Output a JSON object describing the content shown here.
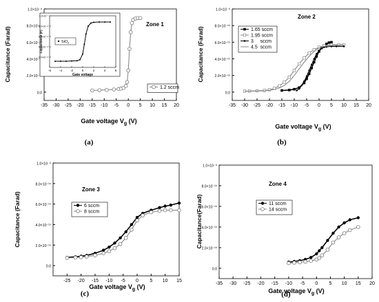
{
  "chart_data": [
    {
      "type": "line",
      "panel_label": "(a)",
      "zone_label": "Zone 1",
      "xlabel": "Gate voltage V",
      "xlabel_sub": "g",
      "xlabel_unit": " (V)",
      "ylabel": "Capacitance (Farad)",
      "xlim": [
        -35,
        20
      ],
      "ylim": [
        -1e-10,
        1e-09
      ],
      "x_ticks": [
        "-35",
        "-30",
        "-25",
        "-20",
        "-15",
        "-10",
        "-5",
        "0",
        "5",
        "10",
        "15",
        "20"
      ],
      "y_ticks": [
        "0.0",
        "2.0×10⁻¹⁰",
        "4.0×10⁻¹⁰",
        "6.0×10⁻¹⁰",
        "8.0×10⁻¹⁰",
        "1.0×10⁻⁹"
      ],
      "legend_position": "right",
      "series": [
        {
          "name": "1.2 sccm",
          "marker": "open-circle",
          "x": [
            -15,
            -12,
            -9,
            -6,
            -4,
            -3,
            -2,
            -1,
            -0.5,
            0,
            0.5,
            1,
            1.5,
            2,
            3,
            4,
            5
          ],
          "y": [
            2e-11,
            2.3e-11,
            2.7e-11,
            3.2e-11,
            3.8e-11,
            4.3e-11,
            5.2e-11,
            7.5e-11,
            1.2e-10,
            2.6e-10,
            5.2e-10,
            7.2e-10,
            8.3e-10,
            8.7e-10,
            8.85e-10,
            8.9e-10,
            8.9e-10
          ]
        }
      ],
      "inset": {
        "xlabel": "Gate voltage",
        "ylabel": "Capacitance (F)",
        "xlim": [
          -6,
          6
        ],
        "ylim": [
          0,
          1e-09
        ],
        "x_ticks": [
          "-6",
          "-4",
          "-2",
          "0",
          "2",
          "4",
          "6"
        ],
        "y_ticks": [
          "2.0×10⁻¹⁰",
          "4.0×10⁻¹⁰",
          "6.0×10⁻¹⁰",
          "8.0×10⁻¹⁰",
          "1.0×10⁻⁹"
        ],
        "legend": "SiO",
        "legend_sub": "2",
        "series": [
          {
            "name": "SiO2",
            "x": [
              -5,
              -4,
              -3,
              -2,
              -1,
              -0.5,
              0,
              0.3,
              0.6,
              1,
              1.5,
              2,
              3,
              4,
              5
            ],
            "y": [
              1.2e-10,
              1.2e-10,
              1.2e-10,
              1.25e-10,
              1.3e-10,
              1.5e-10,
              2.6e-10,
              4.5e-10,
              6.5e-10,
              8e-10,
              8.6e-10,
              8.75e-10,
              8.8e-10,
              8.8e-10,
              8.8e-10
            ]
          }
        ]
      }
    },
    {
      "type": "line",
      "panel_label": "(b)",
      "zone_label": "Zone 2",
      "xlabel": "Gate voltage V",
      "xlabel_sub": "g",
      "xlabel_unit": " (V)",
      "ylabel": "Capacitance (Farad)",
      "xlim": [
        -35,
        20
      ],
      "ylim": [
        -1e-10,
        1e-09
      ],
      "x_ticks": [
        "-35",
        "-30",
        "-25",
        "-20",
        "-15",
        "-10",
        "-5",
        "0",
        "5",
        "10",
        "15",
        "20"
      ],
      "y_ticks": [
        "0.0",
        "2.0×10⁻¹⁰",
        "4.0×10⁻¹⁰",
        "6.0×10⁻¹⁰",
        "8.0×10⁻¹⁰",
        "1.0×10⁻⁹"
      ],
      "legend_position": "top-left",
      "series": [
        {
          "name": "1.65 sccm",
          "marker": "filled-square",
          "x": [
            -15,
            -12,
            -10,
            -8,
            -6,
            -5,
            -4,
            -3,
            -2,
            -1,
            0,
            1,
            2,
            3,
            4,
            5
          ],
          "y": [
            2e-11,
            2.5e-11,
            3.5e-11,
            5.5e-11,
            1.1e-10,
            1.6e-10,
            2.2e-10,
            2.9e-10,
            3.6e-10,
            4.3e-10,
            4.9e-10,
            5.3e-10,
            5.6e-10,
            5.8e-10,
            5.95e-10,
            6e-10
          ]
        },
        {
          "name": "1.95 sccm",
          "marker": "open-square",
          "x": [
            -30,
            -28,
            -25,
            -22,
            -20,
            -18,
            -16,
            -14,
            -12,
            -10,
            -8,
            -6,
            -4,
            -2,
            0,
            2,
            5,
            8,
            10
          ],
          "y": [
            1.2e-11,
            1.3e-11,
            1.5e-11,
            2e-11,
            2.8e-11,
            4.5e-11,
            7.5e-11,
            1.2e-10,
            1.8e-10,
            2.6e-10,
            3.4e-10,
            4.1e-10,
            4.7e-10,
            5.1e-10,
            5.4e-10,
            5.6e-10,
            5.7e-10,
            5.7e-10,
            5.7e-10
          ]
        },
        {
          "name": "3     sccm",
          "marker": "small-dot",
          "x": [
            -9,
            -8,
            -7,
            -6,
            -5,
            -4,
            -3,
            -2,
            -1,
            0,
            1,
            2,
            3,
            5,
            7,
            10
          ],
          "y": [
            2e-11,
            4e-11,
            8e-11,
            1.3e-10,
            1.9e-10,
            2.6e-10,
            3.3e-10,
            4e-10,
            4.6e-10,
            5e-10,
            5.3e-10,
            5.4e-10,
            5.45e-10,
            5.5e-10,
            5.5e-10,
            5.5e-10
          ]
        },
        {
          "name": "4.5  sccm",
          "marker": "line",
          "x": [
            -30,
            -28,
            -25,
            -22,
            -20,
            -18,
            -16,
            -14,
            -12,
            -10,
            -8,
            -6,
            -4,
            -2,
            0,
            2,
            5,
            8,
            10
          ],
          "y": [
            1e-11,
            1.1e-11,
            1.3e-11,
            1.6e-11,
            2.2e-11,
            3.2e-11,
            5e-11,
            8e-11,
            1.3e-10,
            2e-10,
            2.8e-10,
            3.6e-10,
            4.3e-10,
            4.9e-10,
            5.3e-10,
            5.5e-10,
            5.6e-10,
            5.65e-10,
            5.65e-10
          ]
        }
      ]
    },
    {
      "type": "line",
      "panel_label": "(c)",
      "zone_label": "Zone 3",
      "xlabel": "Gate voltage V",
      "xlabel_sub": "g",
      "xlabel_unit": " (V)",
      "ylabel": "Capacitance (Farad)",
      "xlim": [
        -30,
        15
      ],
      "ylim": [
        -1e-10,
        1e-09
      ],
      "x_ticks": [
        "-25",
        "-20",
        "-15",
        "-10",
        "-5",
        "0",
        "5",
        "10",
        "15"
      ],
      "y_ticks": [
        "0.0",
        "2.0×10⁻¹⁰",
        "4.0×10⁻¹⁰",
        "6.0×10⁻¹⁰",
        "8.0×10⁻¹⁰",
        "1.0×10⁻⁹"
      ],
      "legend_position": "left",
      "series": [
        {
          "name": "6 sccm",
          "marker": "filled-dot",
          "x": [
            -25,
            -22,
            -20,
            -18,
            -15,
            -12,
            -10,
            -8,
            -6,
            -4,
            -2,
            0,
            2,
            5,
            8,
            10,
            12,
            15
          ],
          "y": [
            8e-11,
            8.6e-11,
            9.2e-11,
            1e-10,
            1.2e-10,
            1.5e-10,
            1.8e-10,
            2.2e-10,
            2.7e-10,
            3.3e-10,
            4e-10,
            4.7e-10,
            5.1e-10,
            5.4e-10,
            5.65e-10,
            5.8e-10,
            5.9e-10,
            6.1e-10
          ]
        },
        {
          "name": "8 sccm",
          "marker": "open-circle",
          "x": [
            -25,
            -22,
            -20,
            -18,
            -15,
            -12,
            -10,
            -8,
            -6,
            -4,
            -2,
            0,
            2,
            5,
            8,
            10,
            12,
            15
          ],
          "y": [
            7.5e-11,
            7.8e-11,
            8.2e-11,
            8.8e-11,
            1e-10,
            1.2e-10,
            1.4e-10,
            1.7e-10,
            2.1e-10,
            2.7e-10,
            3.5e-10,
            4.4e-10,
            4.9e-10,
            5.2e-10,
            5.35e-10,
            5.4e-10,
            5.4e-10,
            5.4e-10
          ]
        }
      ]
    },
    {
      "type": "line",
      "panel_label": "(d)",
      "zone_label": "Zone 4",
      "xlabel": "Gate voltage V",
      "xlabel_sub": "g",
      "xlabel_unit": " (V)",
      "ylabel": "Capacitance(Farad)",
      "xlim": [
        -35,
        20
      ],
      "ylim": [
        -1e-10,
        1e-09
      ],
      "x_ticks": [
        "-35",
        "-30",
        "-25",
        "-20",
        "-15",
        "-10",
        "-5",
        "0",
        "5",
        "10",
        "15",
        "20"
      ],
      "y_ticks": [
        "0.0",
        "2.0×10⁻¹⁰",
        "4.0×10⁻¹⁰",
        "6.0×10⁻¹⁰",
        "8.0×10⁻¹⁰",
        "1.0×10⁻⁹"
      ],
      "legend_position": "center",
      "series": [
        {
          "name": "11 sccm",
          "marker": "filled-dot",
          "x": [
            -10,
            -8,
            -6,
            -4,
            -2,
            0,
            1,
            2,
            4,
            6,
            8,
            10,
            12,
            15
          ],
          "y": [
            6e-11,
            6.6e-11,
            7.4e-11,
            8.6e-11,
            1.05e-10,
            1.4e-10,
            1.7e-10,
            2e-10,
            2.7e-10,
            3.4e-10,
            4e-10,
            4.4e-10,
            4.7e-10,
            4.9e-10
          ]
        },
        {
          "name": "14 sccm",
          "marker": "open-circle",
          "x": [
            -10,
            -8,
            -6,
            -4,
            -2,
            0,
            1,
            2,
            4,
            6,
            8,
            10,
            12,
            15
          ],
          "y": [
            5e-11,
            5.4e-11,
            5.8e-11,
            6.4e-11,
            7.2e-11,
            8.5e-11,
            1e-10,
            1.25e-10,
            1.8e-10,
            2.5e-10,
            3e-10,
            3.4e-10,
            3.7e-10,
            4e-10
          ]
        }
      ]
    }
  ]
}
